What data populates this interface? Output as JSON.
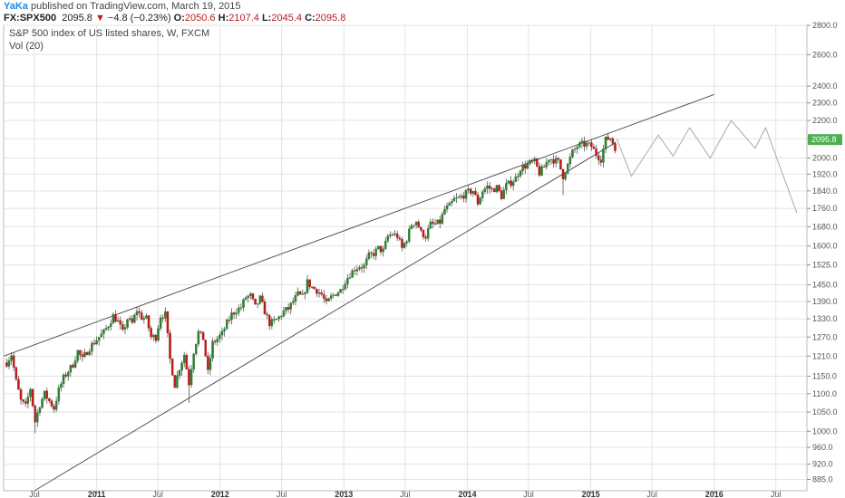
{
  "header": {
    "author": "YaKa",
    "published": "published on TradingView.com, March 19, 2015",
    "symbol": "FX:SPX500",
    "last": "2095.8",
    "change": "−4.8 (−0.23%)",
    "open_label": "O:",
    "open": "2050.6",
    "high_label": "H:",
    "high": "2107.4",
    "low_label": "L:",
    "low": "2045.4",
    "close_label": "C:",
    "close": "2095.8"
  },
  "legend": {
    "title": "S&P 500 index of US listed shares, W, FXCM",
    "indicator": "Vol (20)"
  },
  "colors": {
    "up": "#2e7d32",
    "down": "#b71c1c",
    "grid": "#e3e3e3",
    "price_badge": "#4caf50",
    "projection": "#aaaaaa",
    "trendline": "#555555"
  },
  "chart_data": {
    "type": "candlestick",
    "log_scale": true,
    "grid": true,
    "ylim": [
      860,
      2800
    ],
    "xlim": [
      "2010-04",
      "2016-10"
    ],
    "y_ticks": [
      "885.0",
      "920.0",
      "960.0",
      "1000.0",
      "1050.0",
      "1100.0",
      "1150.0",
      "1210.0",
      "1270.0",
      "1330.0",
      "1390.0",
      "1450.0",
      "1525.0",
      "1600.0",
      "1680.0",
      "1760.0",
      "1840.0",
      "1920.0",
      "2000.0",
      "2100.0",
      "2200.0",
      "2300.0",
      "2400.0",
      "2600.0",
      "2800.0"
    ],
    "x_ticks": [
      {
        "date": "2010-07",
        "label": "Jul",
        "year": false
      },
      {
        "date": "2011-01",
        "label": "2011",
        "year": true
      },
      {
        "date": "2011-07",
        "label": "Jul",
        "year": false
      },
      {
        "date": "2012-01",
        "label": "2012",
        "year": true
      },
      {
        "date": "2012-07",
        "label": "Jul",
        "year": false
      },
      {
        "date": "2013-01",
        "label": "2013",
        "year": true
      },
      {
        "date": "2013-07",
        "label": "Jul",
        "year": false
      },
      {
        "date": "2014-01",
        "label": "2014",
        "year": true
      },
      {
        "date": "2014-07",
        "label": "Jul",
        "year": false
      },
      {
        "date": "2015-01",
        "label": "2015",
        "year": true
      },
      {
        "date": "2015-07",
        "label": "Jul",
        "year": false
      },
      {
        "date": "2016-01",
        "label": "2016",
        "year": true
      },
      {
        "date": "2016-07",
        "label": "Jul",
        "year": false
      }
    ],
    "last_price": {
      "value": 2095.8,
      "label": "2095.8"
    },
    "close_path": [
      [
        "2010-04-10",
        1190
      ],
      [
        "2010-04-24",
        1215
      ],
      [
        "2010-05-08",
        1135
      ],
      [
        "2010-05-22",
        1080
      ],
      [
        "2010-06-05",
        1065
      ],
      [
        "2010-06-19",
        1115
      ],
      [
        "2010-07-03",
        1025
      ],
      [
        "2010-07-17",
        1070
      ],
      [
        "2010-07-31",
        1100
      ],
      [
        "2010-08-14",
        1080
      ],
      [
        "2010-08-28",
        1060
      ],
      [
        "2010-09-11",
        1110
      ],
      [
        "2010-09-25",
        1145
      ],
      [
        "2010-10-09",
        1165
      ],
      [
        "2010-10-23",
        1185
      ],
      [
        "2010-11-06",
        1225
      ],
      [
        "2010-11-20",
        1200
      ],
      [
        "2010-12-04",
        1225
      ],
      [
        "2010-12-18",
        1245
      ],
      [
        "2011-01-08",
        1270
      ],
      [
        "2011-01-22",
        1285
      ],
      [
        "2011-02-05",
        1310
      ],
      [
        "2011-02-19",
        1340
      ],
      [
        "2011-03-05",
        1320
      ],
      [
        "2011-03-19",
        1285
      ],
      [
        "2011-04-02",
        1330
      ],
      [
        "2011-04-16",
        1315
      ],
      [
        "2011-04-30",
        1360
      ],
      [
        "2011-05-14",
        1335
      ],
      [
        "2011-05-28",
        1330
      ],
      [
        "2011-06-11",
        1270
      ],
      [
        "2011-06-25",
        1270
      ],
      [
        "2011-07-09",
        1340
      ],
      [
        "2011-07-23",
        1345
      ],
      [
        "2011-08-06",
        1200
      ],
      [
        "2011-08-20",
        1125
      ],
      [
        "2011-09-03",
        1175
      ],
      [
        "2011-09-17",
        1215
      ],
      [
        "2011-10-01",
        1130
      ],
      [
        "2011-10-15",
        1225
      ],
      [
        "2011-10-29",
        1285
      ],
      [
        "2011-11-12",
        1265
      ],
      [
        "2011-11-26",
        1160
      ],
      [
        "2011-12-10",
        1250
      ],
      [
        "2011-12-24",
        1265
      ],
      [
        "2012-01-07",
        1280
      ],
      [
        "2012-01-21",
        1315
      ],
      [
        "2012-02-04",
        1345
      ],
      [
        "2012-02-18",
        1360
      ],
      [
        "2012-03-03",
        1370
      ],
      [
        "2012-03-17",
        1405
      ],
      [
        "2012-03-31",
        1410
      ],
      [
        "2012-04-14",
        1370
      ],
      [
        "2012-04-28",
        1400
      ],
      [
        "2012-05-12",
        1355
      ],
      [
        "2012-05-26",
        1315
      ],
      [
        "2012-06-09",
        1320
      ],
      [
        "2012-06-23",
        1335
      ],
      [
        "2012-07-07",
        1355
      ],
      [
        "2012-07-21",
        1365
      ],
      [
        "2012-08-04",
        1390
      ],
      [
        "2012-08-18",
        1415
      ],
      [
        "2012-09-01",
        1405
      ],
      [
        "2012-09-15",
        1460
      ],
      [
        "2012-09-29",
        1440
      ],
      [
        "2012-10-13",
        1430
      ],
      [
        "2012-10-27",
        1415
      ],
      [
        "2012-11-10",
        1380
      ],
      [
        "2012-11-24",
        1405
      ],
      [
        "2012-12-08",
        1420
      ],
      [
        "2012-12-22",
        1430
      ],
      [
        "2013-01-05",
        1465
      ],
      [
        "2013-01-19",
        1490
      ],
      [
        "2013-02-02",
        1510
      ],
      [
        "2013-02-16",
        1520
      ],
      [
        "2013-03-02",
        1520
      ],
      [
        "2013-03-16",
        1560
      ],
      [
        "2013-03-30",
        1570
      ],
      [
        "2013-04-13",
        1590
      ],
      [
        "2013-04-27",
        1580
      ],
      [
        "2013-05-11",
        1640
      ],
      [
        "2013-05-25",
        1650
      ],
      [
        "2013-06-08",
        1640
      ],
      [
        "2013-06-22",
        1590
      ],
      [
        "2013-07-06",
        1630
      ],
      [
        "2013-07-20",
        1690
      ],
      [
        "2013-08-03",
        1705
      ],
      [
        "2013-08-17",
        1655
      ],
      [
        "2013-08-31",
        1640
      ],
      [
        "2013-09-14",
        1690
      ],
      [
        "2013-09-28",
        1690
      ],
      [
        "2013-10-12",
        1700
      ],
      [
        "2013-10-26",
        1755
      ],
      [
        "2013-11-09",
        1770
      ],
      [
        "2013-11-23",
        1800
      ],
      [
        "2013-12-07",
        1805
      ],
      [
        "2013-12-21",
        1820
      ],
      [
        "2014-01-04",
        1835
      ],
      [
        "2014-01-18",
        1840
      ],
      [
        "2014-02-01",
        1785
      ],
      [
        "2014-02-15",
        1840
      ],
      [
        "2014-03-01",
        1860
      ],
      [
        "2014-03-15",
        1845
      ],
      [
        "2014-03-29",
        1855
      ],
      [
        "2014-04-12",
        1815
      ],
      [
        "2014-04-26",
        1865
      ],
      [
        "2014-05-10",
        1880
      ],
      [
        "2014-05-24",
        1900
      ],
      [
        "2014-06-07",
        1950
      ],
      [
        "2014-06-21",
        1960
      ],
      [
        "2014-07-05",
        1975
      ],
      [
        "2014-07-19",
        1980
      ],
      [
        "2014-08-02",
        1925
      ],
      [
        "2014-08-16",
        1955
      ],
      [
        "2014-08-30",
        2000
      ],
      [
        "2014-09-13",
        1990
      ],
      [
        "2014-09-27",
        1980
      ],
      [
        "2014-10-11",
        1910
      ],
      [
        "2014-10-25",
        1965
      ],
      [
        "2014-11-08",
        2030
      ],
      [
        "2014-11-22",
        2060
      ],
      [
        "2014-12-06",
        2070
      ],
      [
        "2014-12-20",
        2070
      ],
      [
        "2015-01-03",
        2060
      ],
      [
        "2015-01-17",
        2020
      ],
      [
        "2015-01-31",
        1995
      ],
      [
        "2015-02-14",
        2095
      ],
      [
        "2015-02-28",
        2105
      ],
      [
        "2015-03-14",
        2055
      ],
      [
        "2015-03-19",
        2095.8
      ]
    ],
    "notable_lows": [
      [
        "2010-07-03",
        995
      ],
      [
        "2011-10-01",
        1075
      ],
      [
        "2014-10-11",
        1820
      ]
    ],
    "trendlines": [
      {
        "name": "upper",
        "points": [
          [
            "2010-04-01",
            1210
          ],
          [
            "2016-01-01",
            2350
          ]
        ]
      },
      {
        "name": "lower",
        "points": [
          [
            "2010-07-01",
            860
          ],
          [
            "2015-03-15",
            2080
          ]
        ]
      }
    ],
    "projection": [
      [
        "2015-03-19",
        2100
      ],
      [
        "2015-05-01",
        1910
      ],
      [
        "2015-07-20",
        2120
      ],
      [
        "2015-09-01",
        2010
      ],
      [
        "2015-10-20",
        2160
      ],
      [
        "2015-12-20",
        2000
      ],
      [
        "2016-02-20",
        2200
      ],
      [
        "2016-05-01",
        2050
      ],
      [
        "2016-06-01",
        2160
      ],
      [
        "2016-09-01",
        1740
      ]
    ]
  }
}
